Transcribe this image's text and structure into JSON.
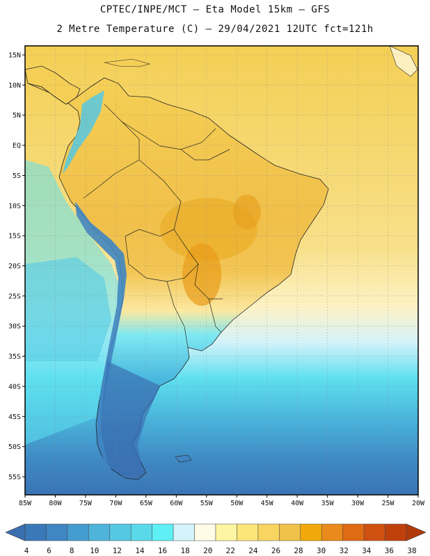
{
  "header": {
    "line1": "CPTEC/INPE/MCT –  Eta Model 15km – GFS",
    "line2": "2 Metre Temperature (C) – 29/04/2021 12UTC fct=121h"
  },
  "map": {
    "region": "South America",
    "lon_range": [
      -85,
      -20
    ],
    "lat_range": [
      -58,
      16.5
    ],
    "lat_labels": [
      "15N",
      "10N",
      "5N",
      "EQ",
      "5S",
      "10S",
      "15S",
      "20S",
      "25S",
      "30S",
      "35S",
      "40S",
      "45S",
      "50S",
      "55S"
    ],
    "lat_values": [
      15,
      10,
      5,
      0,
      -5,
      -10,
      -15,
      -20,
      -25,
      -30,
      -35,
      -40,
      -45,
      -50,
      -55
    ],
    "lon_labels": [
      "85W",
      "80W",
      "75W",
      "70W",
      "65W",
      "60W",
      "55W",
      "50W",
      "45W",
      "40W",
      "35W",
      "30W",
      "25W",
      "20W"
    ],
    "lon_values": [
      -85,
      -80,
      -75,
      -70,
      -65,
      -60,
      -55,
      -50,
      -45,
      -40,
      -35,
      -30,
      -25,
      -20
    ]
  },
  "colorbar": {
    "labels": [
      "4",
      "6",
      "8",
      "10",
      "12",
      "14",
      "16",
      "18",
      "20",
      "22",
      "24",
      "26",
      "28",
      "30",
      "32",
      "34",
      "36",
      "38"
    ],
    "colors": [
      "#3a78b8",
      "#3f86c2",
      "#459ccf",
      "#4fb3da",
      "#55c8e3",
      "#5ad9ea",
      "#5ff0f5",
      "#d5f3fb",
      "#fffbe6",
      "#fdf5a2",
      "#fbe67a",
      "#f7d560",
      "#f0c24a",
      "#f1a80a",
      "#e98a1a",
      "#df6b12",
      "#cf5010",
      "#c0400c"
    ],
    "low_color": "#3a6fb0",
    "high_color": "#b03a0a"
  }
}
